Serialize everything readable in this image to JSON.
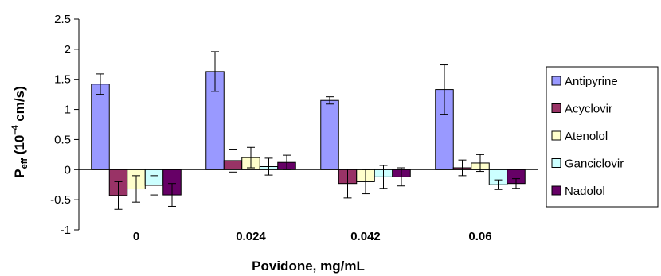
{
  "chart_data": {
    "type": "bar",
    "categories": [
      "0",
      "0.024",
      "0.042",
      "0.06"
    ],
    "xlabel": "Povidone, mg/mL",
    "ylabel": {
      "prefix": "P",
      "subscript": "eff",
      "middle": " (10",
      "superscript": "–4",
      "suffix": " cm/s)"
    },
    "ylim": [
      -1,
      2.5
    ],
    "yticks": [
      "2.5",
      "2",
      "1.5",
      "1",
      "0.5",
      "0",
      "-0.5",
      "-1"
    ],
    "grid": false,
    "legend_position": "right",
    "series": [
      {
        "name": "Antipyrine",
        "color": "#9999ff",
        "values": [
          1.42,
          1.63,
          1.15,
          1.33
        ],
        "err": [
          0.17,
          0.33,
          0.06,
          0.41
        ]
      },
      {
        "name": "Acyclovir",
        "color": "#993366",
        "values": [
          -0.43,
          0.15,
          -0.23,
          0.03
        ],
        "err": [
          0.23,
          0.19,
          0.24,
          0.13
        ]
      },
      {
        "name": "Atenolol",
        "color": "#ffffcc",
        "values": [
          -0.32,
          0.2,
          -0.2,
          0.11
        ],
        "err": [
          0.22,
          0.17,
          0.2,
          0.14
        ]
      },
      {
        "name": "Ganciclovir",
        "color": "#ccffff",
        "values": [
          -0.26,
          0.05,
          -0.12,
          -0.25
        ],
        "err": [
          0.16,
          0.14,
          0.19,
          0.08
        ]
      },
      {
        "name": "Nadolol",
        "color": "#660066",
        "values": [
          -0.42,
          0.12,
          -0.12,
          -0.23
        ],
        "err": [
          0.19,
          0.12,
          0.15,
          0.08
        ]
      }
    ]
  }
}
